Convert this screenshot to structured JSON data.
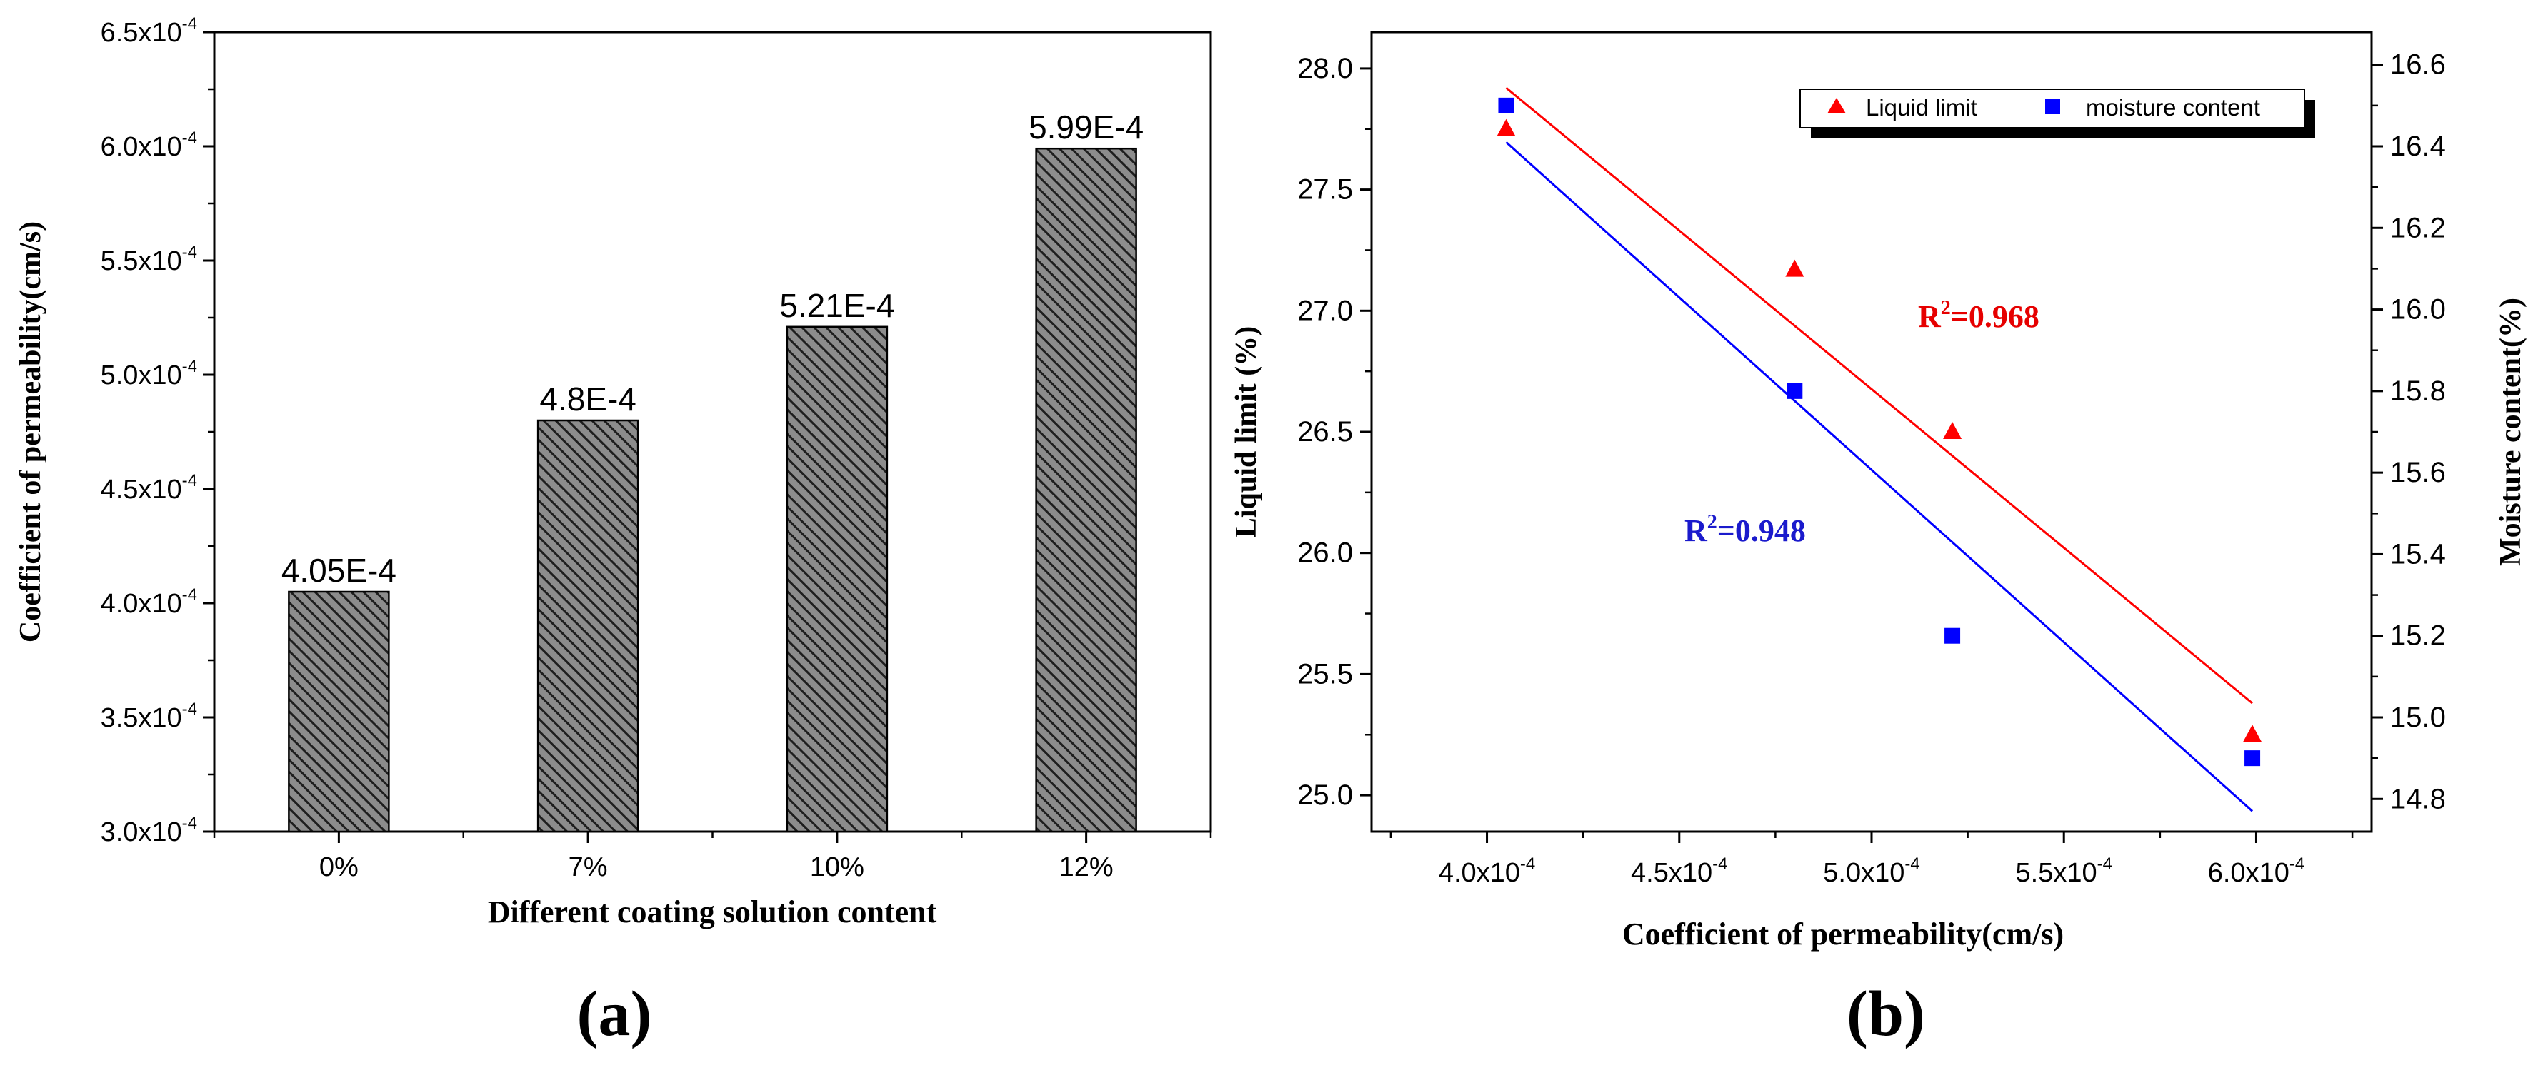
{
  "chart_data": [
    {
      "type": "bar",
      "panel_label": "(a)",
      "categories": [
        "0%",
        "7%",
        "10%",
        "12%"
      ],
      "values": [
        0.000405,
        0.00048,
        0.000521,
        0.000599
      ],
      "value_labels": [
        "4.05E-4",
        "4.8E-4",
        "5.21E-4",
        "5.99E-4"
      ],
      "xlabel": "Different coating solution content",
      "ylabel": "Coefficient of permeability(cm/s)",
      "ylim": [
        0.0003,
        0.00065
      ],
      "yticks": [
        {
          "value": 0.0003,
          "mant": "3.0x10",
          "exp": "-4"
        },
        {
          "value": 0.00035,
          "mant": "3.5x10",
          "exp": "-4"
        },
        {
          "value": 0.0004,
          "mant": "4.0x10",
          "exp": "-4"
        },
        {
          "value": 0.00045,
          "mant": "4.5x10",
          "exp": "-4"
        },
        {
          "value": 0.0005,
          "mant": "5.0x10",
          "exp": "-4"
        },
        {
          "value": 0.00055,
          "mant": "5.5x10",
          "exp": "-4"
        },
        {
          "value": 0.0006,
          "mant": "6.0x10",
          "exp": "-4"
        },
        {
          "value": 0.00065,
          "mant": "6.5x10",
          "exp": "-4"
        }
      ],
      "bar_fill": "#555555",
      "bar_pattern": "diagonal-hatch",
      "grid": false
    },
    {
      "type": "scatter",
      "panel_label": "(b)",
      "xlabel": "Coefficient of permeability(cm/s)",
      "ylabel": "Liquid limit (%)",
      "y2label": "Moisture content(%)",
      "xlim": [
        0.00037,
        0.00063
      ],
      "ylim": [
        24.85,
        28.15
      ],
      "y2lim": [
        14.72,
        16.68
      ],
      "xticks": [
        {
          "value": 0.0004,
          "mant": "4.0x10",
          "exp": "-4"
        },
        {
          "value": 0.00045,
          "mant": "4.5x10",
          "exp": "-4"
        },
        {
          "value": 0.0005,
          "mant": "5.0x10",
          "exp": "-4"
        },
        {
          "value": 0.00055,
          "mant": "5.5x10",
          "exp": "-4"
        },
        {
          "value": 0.0006,
          "mant": "6.0x10",
          "exp": "-4"
        }
      ],
      "yticks": [
        "25.0",
        "25.5",
        "26.0",
        "26.5",
        "27.0",
        "27.5",
        "28.0"
      ],
      "y2ticks": [
        "14.8",
        "15.0",
        "15.2",
        "15.4",
        "15.6",
        "15.8",
        "16.0",
        "16.2",
        "16.4",
        "16.6"
      ],
      "legend_position": "top-right",
      "series": [
        {
          "name": "Liquid limit",
          "axis": "left",
          "marker": "triangle",
          "color": "#ff0000",
          "x": [
            0.000405,
            0.00048,
            0.000521,
            0.000599
          ],
          "y": [
            27.75,
            27.17,
            26.5,
            25.25
          ],
          "fit": {
            "x": [
              0.000405,
              0.000599
            ],
            "y": [
              27.92,
              25.38
            ]
          },
          "r2_label": {
            "prefix": "R",
            "sup": "2",
            "value": "=0.968"
          }
        },
        {
          "name": "moisture content",
          "axis": "right",
          "marker": "square",
          "color": "#0000ff",
          "x": [
            0.000405,
            0.00048,
            0.000521,
            0.000599
          ],
          "y": [
            16.5,
            15.8,
            15.2,
            14.9
          ],
          "fit": {
            "x": [
              0.000405,
              0.000599
            ],
            "y": [
              16.41,
              14.77
            ]
          },
          "r2_label": {
            "prefix": "R",
            "sup": "2",
            "value": "=0.948"
          }
        }
      ],
      "grid": false
    }
  ]
}
